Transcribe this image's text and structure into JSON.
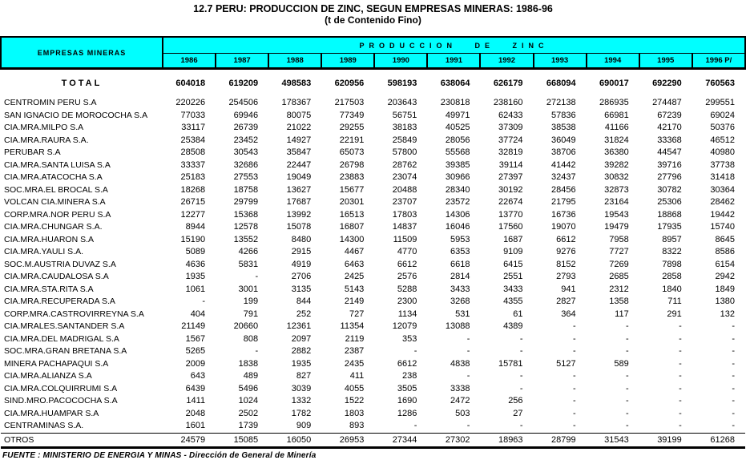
{
  "title": {
    "line1": "12.7  PERU: PRODUCCION DE ZINC, SEGUN EMPRESAS MINERAS: 1986-96",
    "line2": "(t de  Contenido Fino)"
  },
  "colors": {
    "header_bg": "#00FFFF",
    "border": "#000000",
    "text": "#000000"
  },
  "table": {
    "corner_header": "EMPRESAS MINERAS",
    "group_header": "PRODUCCION DE ZINC",
    "years": [
      "1986",
      "1987",
      "1988",
      "1989",
      "1990",
      "1991",
      "1992",
      "1993",
      "1994",
      "1995",
      "1996 P/"
    ],
    "total_row": {
      "name": "TOTAL",
      "values": [
        "604018",
        "619209",
        "498583",
        "620956",
        "598193",
        "638064",
        "626179",
        "668094",
        "690017",
        "692290",
        "760563"
      ]
    },
    "company_rows": [
      {
        "name": "CENTROMIN PERU S.A",
        "values": [
          "220226",
          "254506",
          "178367",
          "217503",
          "203643",
          "230818",
          "238160",
          "272138",
          "286935",
          "274487",
          "299551"
        ]
      },
      {
        "name": "SAN  IGNACIO DE MOROCOCHA  S.A",
        "values": [
          "77033",
          "69946",
          "80075",
          "77349",
          "56751",
          "49971",
          "62433",
          "57836",
          "66981",
          "67239",
          "69024"
        ]
      },
      {
        "name": "CIA.MRA.MILPO  S.A",
        "values": [
          "33117",
          "26739",
          "21022",
          "29255",
          "38183",
          "40525",
          "37309",
          "38538",
          "41166",
          "42170",
          "50376"
        ]
      },
      {
        "name": "CIA.MRA.RAURA S.A.",
        "values": [
          "25384",
          "23452",
          "14927",
          "22191",
          "25849",
          "28056",
          "37724",
          "36049",
          "31824",
          "33368",
          "46512"
        ]
      },
      {
        "name": "PERUBAR  S.A",
        "values": [
          "28508",
          "30543",
          "35847",
          "65073",
          "57800",
          "55568",
          "32819",
          "38706",
          "36380",
          "44547",
          "40980"
        ]
      },
      {
        "name": "CIA.MRA.SANTA LUISA  S.A",
        "values": [
          "33337",
          "32686",
          "22447",
          "26798",
          "28762",
          "39385",
          "39114",
          "41442",
          "39282",
          "39716",
          "37738"
        ]
      },
      {
        "name": "CIA.MRA.ATACOCHA  S.A",
        "values": [
          "25183",
          "27553",
          "19049",
          "23883",
          "23074",
          "30966",
          "27397",
          "32437",
          "30832",
          "27796",
          "31418"
        ]
      },
      {
        "name": "SOC.MRA.EL BROCAL S.A",
        "values": [
          "18268",
          "18758",
          "13627",
          "15677",
          "20488",
          "28340",
          "30192",
          "28456",
          "32873",
          "30782",
          "30364"
        ]
      },
      {
        "name": "VOLCAN CIA.MINERA  S.A",
        "values": [
          "26715",
          "29799",
          "17687",
          "20301",
          "23707",
          "23572",
          "22674",
          "21795",
          "23164",
          "25306",
          "28462"
        ]
      },
      {
        "name": "CORP.MRA.NOR PERU S.A",
        "values": [
          "12277",
          "15368",
          "13992",
          "16513",
          "17803",
          "14306",
          "13770",
          "16736",
          "19543",
          "18868",
          "19442"
        ]
      },
      {
        "name": "CIA.MRA.CHUNGAR S.A.",
        "values": [
          "8944",
          "12578",
          "15078",
          "16807",
          "14837",
          "16046",
          "17560",
          "19070",
          "19479",
          "17935",
          "15740"
        ]
      },
      {
        "name": "CIA.MRA.HUARON  S.A",
        "values": [
          "15190",
          "13552",
          "8480",
          "14300",
          "11509",
          "5953",
          "1687",
          "6612",
          "7958",
          "8957",
          "8645"
        ]
      },
      {
        "name": "CIA.MRA.YAULI S.A.",
        "values": [
          "5089",
          "4266",
          "2915",
          "4467",
          "4770",
          "6353",
          "9109",
          "9276",
          "7727",
          "8322",
          "8586"
        ]
      },
      {
        "name": "SOC.M.AUSTRIA DUVAZ  S.A",
        "values": [
          "4636",
          "5831",
          "4919",
          "6463",
          "6612",
          "6618",
          "6415",
          "8152",
          "7269",
          "7898",
          "6154"
        ]
      },
      {
        "name": "CIA.MRA.CAUDALOSA S.A",
        "values": [
          "1935",
          "-",
          "2706",
          "2425",
          "2576",
          "2814",
          "2551",
          "2793",
          "2685",
          "2858",
          "2942"
        ]
      },
      {
        "name": "CIA.MRA.STA.RITA S.A",
        "values": [
          "1061",
          "3001",
          "3135",
          "5143",
          "5288",
          "3433",
          "3433",
          "941",
          "2312",
          "1840",
          "1849"
        ]
      },
      {
        "name": "CIA.MRA.RECUPERADA  S.A",
        "values": [
          "-",
          "199",
          "844",
          "2149",
          "2300",
          "3268",
          "4355",
          "2827",
          "1358",
          "711",
          "1380"
        ]
      },
      {
        "name": "CORP.MRA.CASTROVIRREYNA  S.A",
        "values": [
          "404",
          "791",
          "252",
          "727",
          "1134",
          "531",
          "61",
          "364",
          "117",
          "291",
          "132"
        ]
      },
      {
        "name": "CIA.MRALES.SANTANDER  S.A",
        "values": [
          "21149",
          "20660",
          "12361",
          "11354",
          "12079",
          "13088",
          "4389",
          "-",
          "-",
          "-",
          "-"
        ]
      },
      {
        "name": "CIA.MRA.DEL MADRIGAL  S.A",
        "values": [
          "1567",
          "808",
          "2097",
          "2119",
          "353",
          "-",
          "-",
          "-",
          "-",
          "-",
          "-"
        ]
      },
      {
        "name": "SOC.MRA.GRAN BRETANA  S.A",
        "values": [
          "5265",
          "-",
          "2882",
          "2387",
          "-",
          "-",
          "-",
          "-",
          "-",
          "-",
          "-"
        ]
      },
      {
        "name": "MINERA PACHAPAQUI S.A",
        "values": [
          "2009",
          "1838",
          "1935",
          "2435",
          "6612",
          "4838",
          "15781",
          "5127",
          "589",
          "-",
          "-"
        ]
      },
      {
        "name": "CIA.MRA.ALIANZA  S.A",
        "values": [
          "643",
          "489",
          "827",
          "411",
          "238",
          "-",
          "-",
          "-",
          "-",
          "-",
          "-"
        ]
      },
      {
        "name": "CIA.MRA.COLQUIRRUMI  S.A",
        "values": [
          "6439",
          "5496",
          "3039",
          "4055",
          "3505",
          "3338",
          "-",
          "-",
          "-",
          "-",
          "-"
        ]
      },
      {
        "name": "SIND.MRO.PACOCOCHA  S.A",
        "values": [
          "1411",
          "1024",
          "1332",
          "1522",
          "1690",
          "2472",
          "256",
          "-",
          "-",
          "-",
          "-"
        ]
      },
      {
        "name": "CIA.MRA.HUAMPAR  S.A",
        "values": [
          "2048",
          "2502",
          "1782",
          "1803",
          "1286",
          "503",
          "27",
          "-",
          "-",
          "-",
          "-"
        ]
      },
      {
        "name": "CENTRAMINAS S.A.",
        "values": [
          "1601",
          "1739",
          "909",
          "893",
          "-",
          "-",
          "-",
          "-",
          "-",
          "-",
          "-"
        ]
      }
    ],
    "otros_row": {
      "name": "OTROS",
      "values": [
        "24579",
        "15085",
        "16050",
        "26953",
        "27344",
        "27302",
        "18963",
        "28799",
        "31543",
        "39199",
        "61268"
      ]
    }
  },
  "footer": {
    "source": "FUENTE : MINISTERIO DE ENERGIA Y MINAS - Dirección de General de Minería"
  }
}
